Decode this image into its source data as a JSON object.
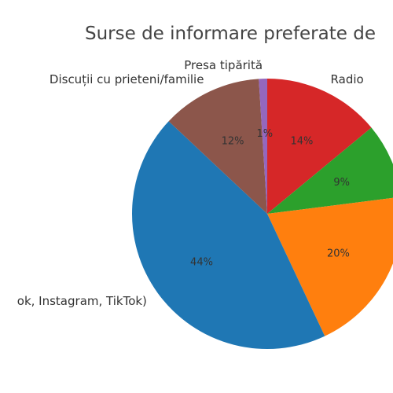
{
  "chart_data": {
    "type": "pie",
    "title": "Surse de informare preferate de",
    "slices": [
      {
        "label": "Radio",
        "value": 14,
        "pct_label": "14%",
        "color": "#d62728"
      },
      {
        "label": "",
        "value": 9,
        "pct_label": "9%",
        "color": "#2ca02c"
      },
      {
        "label": "",
        "value": 20,
        "pct_label": "20%",
        "color": "#ff7f0e"
      },
      {
        "label": "ok, Instagram, TikTok)",
        "value": 44,
        "pct_label": "44%",
        "color": "#1f77b4"
      },
      {
        "label": "Discuții cu prieteni/familie",
        "value": 12,
        "pct_label": "12%",
        "color": "#8c564b"
      },
      {
        "label": "Presa tipărită",
        "value": 1,
        "pct_label": "1%",
        "color": "#9467bd"
      }
    ],
    "start_angle_deg": 90,
    "direction": "clockwise"
  }
}
